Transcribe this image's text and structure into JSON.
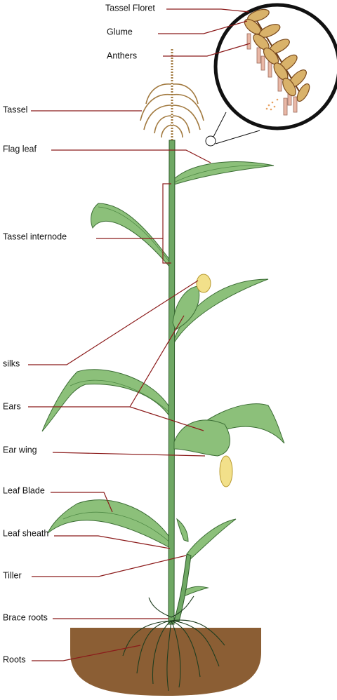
{
  "labels": [
    "Tassel Floret",
    "Glume",
    "Anthers",
    "Tassel",
    "Flag leaf",
    "Tassel internode",
    "silks",
    "Ears",
    "Ear wing",
    "Leaf Blade",
    "Leaf sheath",
    "Tiller",
    "Brace roots",
    "Roots"
  ]
}
